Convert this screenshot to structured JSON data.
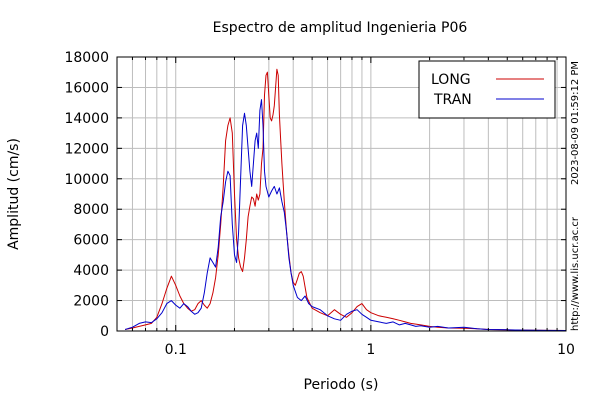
{
  "chart_data": {
    "type": "line",
    "title": "Espectro de amplitud Ingenieria P06",
    "xlabel": "Periodo (s)",
    "ylabel": "Amplitud (cm/s)",
    "x_scale": "log",
    "xlim": [
      0.05,
      10
    ],
    "ylim": [
      0,
      18000
    ],
    "x_ticks": [
      {
        "value": 0.1,
        "label": "0.1"
      },
      {
        "value": 1,
        "label": "1"
      },
      {
        "value": 10,
        "label": "10"
      }
    ],
    "y_ticks": [
      {
        "value": 0,
        "label": "0"
      },
      {
        "value": 2000,
        "label": "2000"
      },
      {
        "value": 4000,
        "label": "4000"
      },
      {
        "value": 6000,
        "label": "6000"
      },
      {
        "value": 8000,
        "label": "8000"
      },
      {
        "value": 10000,
        "label": "10000"
      },
      {
        "value": 12000,
        "label": "12000"
      },
      {
        "value": 14000,
        "label": "14000"
      },
      {
        "value": 16000,
        "label": "16000"
      },
      {
        "value": 18000,
        "label": "18000"
      }
    ],
    "grid": true,
    "legend_position": "top-right",
    "side_annotations": [
      "2023-08-09 01:59:12 PM",
      "http://www.lis.ucr.ac.cr"
    ],
    "series": [
      {
        "name": "LONG",
        "color": "#cc0000",
        "points": [
          [
            0.055,
            100
          ],
          [
            0.06,
            200
          ],
          [
            0.065,
            300
          ],
          [
            0.07,
            400
          ],
          [
            0.075,
            500
          ],
          [
            0.08,
            900
          ],
          [
            0.085,
            1800
          ],
          [
            0.09,
            2800
          ],
          [
            0.095,
            3600
          ],
          [
            0.1,
            3000
          ],
          [
            0.105,
            2300
          ],
          [
            0.11,
            1800
          ],
          [
            0.115,
            1500
          ],
          [
            0.12,
            1300
          ],
          [
            0.125,
            1400
          ],
          [
            0.13,
            1800
          ],
          [
            0.135,
            2000
          ],
          [
            0.14,
            1700
          ],
          [
            0.145,
            1500
          ],
          [
            0.15,
            1800
          ],
          [
            0.155,
            2500
          ],
          [
            0.16,
            3500
          ],
          [
            0.165,
            5000
          ],
          [
            0.17,
            7000
          ],
          [
            0.175,
            9500
          ],
          [
            0.18,
            12500
          ],
          [
            0.185,
            13500
          ],
          [
            0.19,
            14000
          ],
          [
            0.195,
            13000
          ],
          [
            0.2,
            9000
          ],
          [
            0.205,
            6000
          ],
          [
            0.21,
            4800
          ],
          [
            0.215,
            4200
          ],
          [
            0.22,
            3900
          ],
          [
            0.225,
            4800
          ],
          [
            0.23,
            6000
          ],
          [
            0.235,
            7500
          ],
          [
            0.24,
            8200
          ],
          [
            0.245,
            8800
          ],
          [
            0.25,
            8700
          ],
          [
            0.255,
            8200
          ],
          [
            0.26,
            9000
          ],
          [
            0.265,
            8600
          ],
          [
            0.27,
            9000
          ],
          [
            0.275,
            11000
          ],
          [
            0.28,
            12000
          ],
          [
            0.285,
            15500
          ],
          [
            0.29,
            16800
          ],
          [
            0.295,
            17000
          ],
          [
            0.3,
            15500
          ],
          [
            0.305,
            14000
          ],
          [
            0.31,
            13800
          ],
          [
            0.315,
            14200
          ],
          [
            0.32,
            14800
          ],
          [
            0.325,
            16000
          ],
          [
            0.33,
            17200
          ],
          [
            0.335,
            16800
          ],
          [
            0.34,
            14200
          ],
          [
            0.345,
            12500
          ],
          [
            0.35,
            11000
          ],
          [
            0.36,
            8500
          ],
          [
            0.37,
            6500
          ],
          [
            0.38,
            5000
          ],
          [
            0.39,
            3800
          ],
          [
            0.4,
            3200
          ],
          [
            0.41,
            3000
          ],
          [
            0.42,
            3400
          ],
          [
            0.43,
            3800
          ],
          [
            0.44,
            3900
          ],
          [
            0.45,
            3600
          ],
          [
            0.47,
            2200
          ],
          [
            0.5,
            1500
          ],
          [
            0.55,
            1200
          ],
          [
            0.6,
            1000
          ],
          [
            0.65,
            1400
          ],
          [
            0.7,
            1100
          ],
          [
            0.75,
            900
          ],
          [
            0.8,
            1200
          ],
          [
            0.85,
            1600
          ],
          [
            0.9,
            1800
          ],
          [
            0.95,
            1400
          ],
          [
            1.0,
            1200
          ],
          [
            1.1,
            1000
          ],
          [
            1.2,
            900
          ],
          [
            1.3,
            800
          ],
          [
            1.4,
            700
          ],
          [
            1.5,
            600
          ],
          [
            1.6,
            500
          ],
          [
            1.7,
            450
          ],
          [
            1.8,
            400
          ],
          [
            2.0,
            300
          ],
          [
            2.2,
            250
          ],
          [
            2.5,
            200
          ],
          [
            3.0,
            180
          ],
          [
            3.5,
            150
          ],
          [
            4.0,
            100
          ],
          [
            5.0,
            80
          ],
          [
            6.0,
            60
          ],
          [
            7.0,
            50
          ],
          [
            8.0,
            40
          ],
          [
            10.0,
            30
          ]
        ]
      },
      {
        "name": "TRAN",
        "color": "#0000cc",
        "points": [
          [
            0.055,
            100
          ],
          [
            0.06,
            250
          ],
          [
            0.065,
            500
          ],
          [
            0.07,
            600
          ],
          [
            0.075,
            550
          ],
          [
            0.08,
            800
          ],
          [
            0.085,
            1200
          ],
          [
            0.09,
            1800
          ],
          [
            0.095,
            2000
          ],
          [
            0.1,
            1700
          ],
          [
            0.105,
            1500
          ],
          [
            0.11,
            1800
          ],
          [
            0.115,
            1600
          ],
          [
            0.12,
            1300
          ],
          [
            0.125,
            1100
          ],
          [
            0.13,
            1200
          ],
          [
            0.135,
            1500
          ],
          [
            0.14,
            2500
          ],
          [
            0.145,
            3800
          ],
          [
            0.15,
            4800
          ],
          [
            0.155,
            4500
          ],
          [
            0.16,
            4200
          ],
          [
            0.165,
            5500
          ],
          [
            0.17,
            7500
          ],
          [
            0.175,
            8500
          ],
          [
            0.18,
            9800
          ],
          [
            0.185,
            10500
          ],
          [
            0.19,
            10200
          ],
          [
            0.195,
            7000
          ],
          [
            0.2,
            5000
          ],
          [
            0.205,
            4500
          ],
          [
            0.21,
            6500
          ],
          [
            0.215,
            10000
          ],
          [
            0.22,
            13500
          ],
          [
            0.225,
            14300
          ],
          [
            0.23,
            13500
          ],
          [
            0.235,
            12000
          ],
          [
            0.24,
            10500
          ],
          [
            0.245,
            9500
          ],
          [
            0.25,
            11000
          ],
          [
            0.255,
            12500
          ],
          [
            0.26,
            13000
          ],
          [
            0.265,
            12000
          ],
          [
            0.27,
            14500
          ],
          [
            0.275,
            15200
          ],
          [
            0.28,
            13500
          ],
          [
            0.285,
            10500
          ],
          [
            0.29,
            9500
          ],
          [
            0.3,
            8800
          ],
          [
            0.31,
            9200
          ],
          [
            0.32,
            9500
          ],
          [
            0.33,
            9000
          ],
          [
            0.34,
            9400
          ],
          [
            0.35,
            8500
          ],
          [
            0.36,
            7800
          ],
          [
            0.37,
            6500
          ],
          [
            0.38,
            4800
          ],
          [
            0.39,
            3800
          ],
          [
            0.4,
            3000
          ],
          [
            0.42,
            2200
          ],
          [
            0.44,
            2000
          ],
          [
            0.46,
            2300
          ],
          [
            0.48,
            1800
          ],
          [
            0.5,
            1600
          ],
          [
            0.55,
            1400
          ],
          [
            0.6,
            1000
          ],
          [
            0.65,
            800
          ],
          [
            0.7,
            700
          ],
          [
            0.75,
            1100
          ],
          [
            0.8,
            1300
          ],
          [
            0.85,
            1400
          ],
          [
            0.9,
            1100
          ],
          [
            0.95,
            900
          ],
          [
            1.0,
            700
          ],
          [
            1.1,
            600
          ],
          [
            1.2,
            500
          ],
          [
            1.3,
            600
          ],
          [
            1.4,
            400
          ],
          [
            1.5,
            500
          ],
          [
            1.6,
            400
          ],
          [
            1.7,
            300
          ],
          [
            1.8,
            350
          ],
          [
            2.0,
            250
          ],
          [
            2.2,
            300
          ],
          [
            2.5,
            200
          ],
          [
            3.0,
            250
          ],
          [
            3.5,
            150
          ],
          [
            4.0,
            100
          ],
          [
            5.0,
            80
          ],
          [
            6.0,
            60
          ],
          [
            7.0,
            50
          ],
          [
            8.0,
            40
          ],
          [
            10.0,
            30
          ]
        ]
      }
    ]
  }
}
